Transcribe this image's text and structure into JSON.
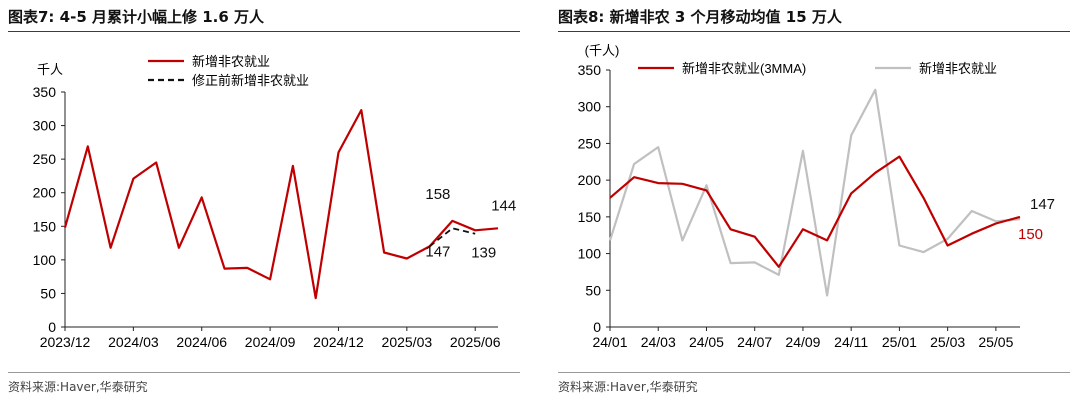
{
  "left": {
    "title": "图表7:  4-5 月累计小幅上修 1.6 万人",
    "source": "资料来源:Haver,华泰研究"
  },
  "right": {
    "title": "图表8:  新增非农 3 个月移动均值 15 万人",
    "source": "资料来源:Haver,华泰研究"
  },
  "chart_data": [
    {
      "type": "line",
      "ylabel": "千人",
      "ylim": [
        0,
        350
      ],
      "yticks": [
        0,
        50,
        100,
        150,
        200,
        250,
        300,
        350
      ],
      "x_tick_labels": [
        "2023/12",
        "2024/03",
        "2024/06",
        "2024/09",
        "2024/12",
        "2025/03",
        "2025/06"
      ],
      "x_tick_index": [
        0,
        3,
        6,
        9,
        12,
        15,
        18
      ],
      "x_count": 20,
      "legend_position": "top",
      "grid": false,
      "series": [
        {
          "name": "新增非农就业",
          "color": "#c00000",
          "dash": false,
          "values": [
            148,
            269,
            118,
            221,
            245,
            118,
            193,
            87,
            88,
            71,
            240,
            43,
            260,
            323,
            111,
            102,
            120,
            158,
            144,
            147
          ]
        },
        {
          "name": "修正前新增非农就业",
          "color": "#111111",
          "dash": true,
          "x_start": 16,
          "values": [
            120,
            147,
            139
          ]
        }
      ],
      "annotations": [
        {
          "text": "158",
          "x": 17,
          "y": 158,
          "color": "#111111"
        },
        {
          "text": "144",
          "x": 18,
          "y": 144,
          "color": "#111111"
        },
        {
          "text": "147",
          "x": 17,
          "y": 147,
          "color": "#111111"
        },
        {
          "text": "139",
          "x": 18,
          "y": 139,
          "color": "#111111"
        }
      ]
    },
    {
      "type": "line",
      "ylabel": "(千人)",
      "ylim": [
        0,
        350
      ],
      "yticks": [
        0,
        50,
        100,
        150,
        200,
        250,
        300,
        350
      ],
      "x_tick_labels": [
        "24/01",
        "24/03",
        "24/05",
        "24/07",
        "24/09",
        "24/11",
        "25/01",
        "25/03",
        "25/05"
      ],
      "x_tick_index": [
        0,
        2,
        4,
        6,
        8,
        10,
        12,
        14,
        16
      ],
      "x_count": 18,
      "legend_position": "top",
      "grid": false,
      "series": [
        {
          "name": "新增非农就业(3MMA)",
          "color": "#c00000",
          "dash": false,
          "values": [
            176,
            204,
            196,
            195,
            186,
            133,
            123,
            82,
            133,
            118,
            182,
            210,
            232,
            176,
            111,
            127,
            141,
            150
          ]
        },
        {
          "name": "新增非农就业",
          "color": "#c0c0c0",
          "dash": false,
          "values": [
            118,
            222,
            245,
            118,
            193,
            87,
            88,
            71,
            240,
            43,
            261,
            323,
            111,
            102,
            120,
            158,
            144,
            147
          ]
        }
      ],
      "annotations": [
        {
          "text": "147",
          "x": 17,
          "y": 147,
          "color": "#111111"
        },
        {
          "text": "150",
          "x": 17,
          "y": 150,
          "color": "#c00000"
        }
      ]
    }
  ]
}
